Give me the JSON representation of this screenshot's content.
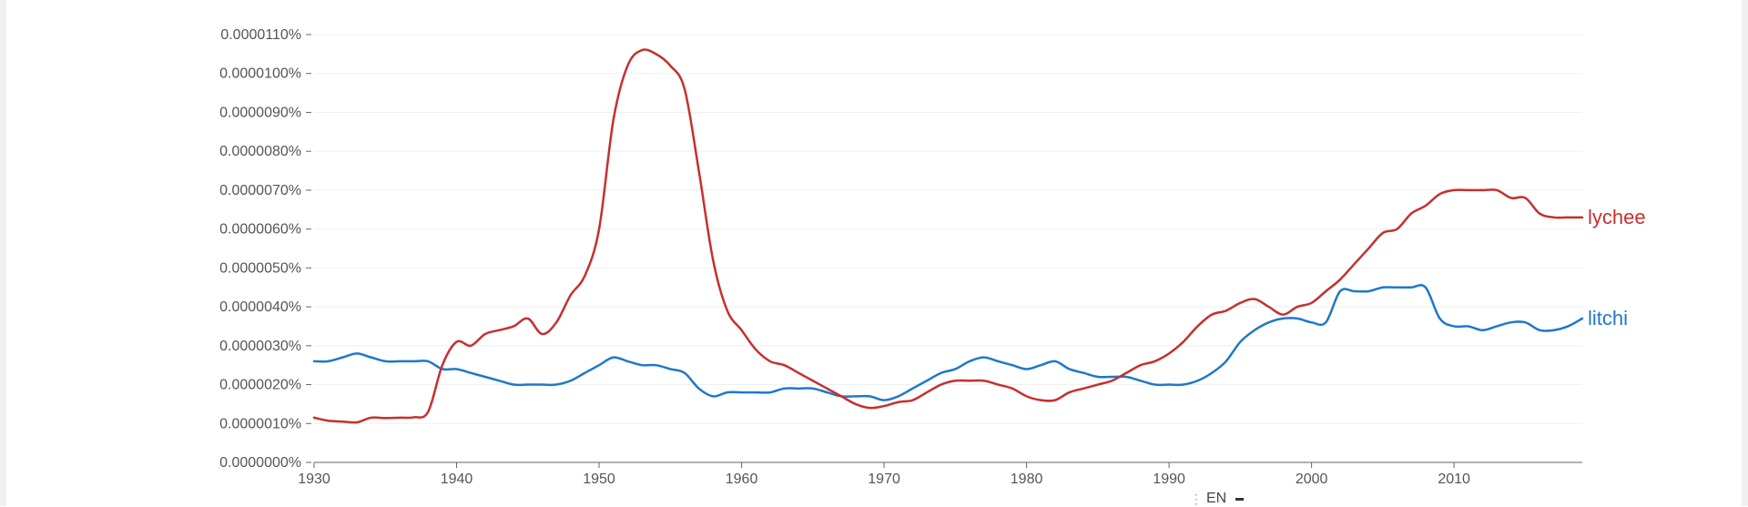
{
  "chart_data": {
    "type": "line",
    "title": "",
    "xlabel": "",
    "ylabel": "",
    "xlim": [
      1930,
      2019
    ],
    "ylim": [
      0,
      1.1e-05
    ],
    "x_ticks": [
      "1930",
      "1940",
      "1950",
      "1960",
      "1970",
      "1980",
      "1990",
      "2000",
      "2010"
    ],
    "y_ticks": [
      "0.0000000%",
      "0.0000010%",
      "0.0000020%",
      "0.0000030%",
      "0.0000040%",
      "0.0000050%",
      "0.0000060%",
      "0.0000070%",
      "0.0000080%",
      "0.0000090%",
      "0.0000100%",
      "0.0000110%"
    ],
    "grid": true,
    "legend": "inline labels at line ends (right)",
    "series": [
      {
        "name": "lychee",
        "color": "#c62f2f",
        "points": [
          [
            1930,
            1.15e-06
          ],
          [
            1931,
            1.07e-06
          ],
          [
            1932,
            1.05e-06
          ],
          [
            1933,
            1.03e-06
          ],
          [
            1934,
            1.15e-06
          ],
          [
            1935,
            1.14e-06
          ],
          [
            1936,
            1.15e-06
          ],
          [
            1937,
            1.16e-06
          ],
          [
            1938,
            1.3e-06
          ],
          [
            1939,
            2.5e-06
          ],
          [
            1940,
            3.1e-06
          ],
          [
            1941,
            3e-06
          ],
          [
            1942,
            3.3e-06
          ],
          [
            1943,
            3.4e-06
          ],
          [
            1944,
            3.5e-06
          ],
          [
            1945,
            3.7e-06
          ],
          [
            1946,
            3.3e-06
          ],
          [
            1947,
            3.6e-06
          ],
          [
            1948,
            4.3e-06
          ],
          [
            1949,
            4.8e-06
          ],
          [
            1950,
            6e-06
          ],
          [
            1951,
            8.8e-06
          ],
          [
            1952,
            1.02e-05
          ],
          [
            1953,
            1.06e-05
          ],
          [
            1954,
            1.05e-05
          ],
          [
            1955,
            1.02e-05
          ],
          [
            1956,
            9.6e-06
          ],
          [
            1957,
            7.5e-06
          ],
          [
            1958,
            5.2e-06
          ],
          [
            1959,
            3.9e-06
          ],
          [
            1960,
            3.4e-06
          ],
          [
            1961,
            2.9e-06
          ],
          [
            1962,
            2.6e-06
          ],
          [
            1963,
            2.5e-06
          ],
          [
            1964,
            2.3e-06
          ],
          [
            1965,
            2.1e-06
          ],
          [
            1966,
            1.9e-06
          ],
          [
            1967,
            1.7e-06
          ],
          [
            1968,
            1.5e-06
          ],
          [
            1969,
            1.4e-06
          ],
          [
            1970,
            1.45e-06
          ],
          [
            1971,
            1.55e-06
          ],
          [
            1972,
            1.6e-06
          ],
          [
            1973,
            1.8e-06
          ],
          [
            1974,
            2e-06
          ],
          [
            1975,
            2.1e-06
          ],
          [
            1976,
            2.1e-06
          ],
          [
            1977,
            2.1e-06
          ],
          [
            1978,
            2e-06
          ],
          [
            1979,
            1.9e-06
          ],
          [
            1980,
            1.7e-06
          ],
          [
            1981,
            1.6e-06
          ],
          [
            1982,
            1.6e-06
          ],
          [
            1983,
            1.8e-06
          ],
          [
            1984,
            1.9e-06
          ],
          [
            1985,
            2e-06
          ],
          [
            1986,
            2.1e-06
          ],
          [
            1987,
            2.3e-06
          ],
          [
            1988,
            2.5e-06
          ],
          [
            1989,
            2.6e-06
          ],
          [
            1990,
            2.8e-06
          ],
          [
            1991,
            3.1e-06
          ],
          [
            1992,
            3.5e-06
          ],
          [
            1993,
            3.8e-06
          ],
          [
            1994,
            3.9e-06
          ],
          [
            1995,
            4.1e-06
          ],
          [
            1996,
            4.2e-06
          ],
          [
            1997,
            4e-06
          ],
          [
            1998,
            3.8e-06
          ],
          [
            1999,
            4e-06
          ],
          [
            2000,
            4.1e-06
          ],
          [
            2001,
            4.4e-06
          ],
          [
            2002,
            4.7e-06
          ],
          [
            2003,
            5.1e-06
          ],
          [
            2004,
            5.5e-06
          ],
          [
            2005,
            5.9e-06
          ],
          [
            2006,
            6e-06
          ],
          [
            2007,
            6.4e-06
          ],
          [
            2008,
            6.6e-06
          ],
          [
            2009,
            6.9e-06
          ],
          [
            2010,
            7e-06
          ],
          [
            2011,
            7e-06
          ],
          [
            2012,
            7e-06
          ],
          [
            2013,
            7e-06
          ],
          [
            2014,
            6.8e-06
          ],
          [
            2015,
            6.8e-06
          ],
          [
            2016,
            6.4e-06
          ],
          [
            2017,
            6.3e-06
          ],
          [
            2018,
            6.3e-06
          ],
          [
            2019,
            6.3e-06
          ]
        ]
      },
      {
        "name": "litchi",
        "color": "#1f78c8",
        "points": [
          [
            1930,
            2.6e-06
          ],
          [
            1931,
            2.6e-06
          ],
          [
            1932,
            2.7e-06
          ],
          [
            1933,
            2.8e-06
          ],
          [
            1934,
            2.7e-06
          ],
          [
            1935,
            2.6e-06
          ],
          [
            1936,
            2.6e-06
          ],
          [
            1937,
            2.6e-06
          ],
          [
            1938,
            2.6e-06
          ],
          [
            1939,
            2.4e-06
          ],
          [
            1940,
            2.4e-06
          ],
          [
            1941,
            2.3e-06
          ],
          [
            1942,
            2.2e-06
          ],
          [
            1943,
            2.1e-06
          ],
          [
            1944,
            2e-06
          ],
          [
            1945,
            2e-06
          ],
          [
            1946,
            2e-06
          ],
          [
            1947,
            2e-06
          ],
          [
            1948,
            2.1e-06
          ],
          [
            1949,
            2.3e-06
          ],
          [
            1950,
            2.5e-06
          ],
          [
            1951,
            2.7e-06
          ],
          [
            1952,
            2.6e-06
          ],
          [
            1953,
            2.5e-06
          ],
          [
            1954,
            2.5e-06
          ],
          [
            1955,
            2.4e-06
          ],
          [
            1956,
            2.3e-06
          ],
          [
            1957,
            1.9e-06
          ],
          [
            1958,
            1.7e-06
          ],
          [
            1959,
            1.8e-06
          ],
          [
            1960,
            1.8e-06
          ],
          [
            1961,
            1.8e-06
          ],
          [
            1962,
            1.8e-06
          ],
          [
            1963,
            1.9e-06
          ],
          [
            1964,
            1.9e-06
          ],
          [
            1965,
            1.9e-06
          ],
          [
            1966,
            1.8e-06
          ],
          [
            1967,
            1.7e-06
          ],
          [
            1968,
            1.7e-06
          ],
          [
            1969,
            1.7e-06
          ],
          [
            1970,
            1.6e-06
          ],
          [
            1971,
            1.7e-06
          ],
          [
            1972,
            1.9e-06
          ],
          [
            1973,
            2.1e-06
          ],
          [
            1974,
            2.3e-06
          ],
          [
            1975,
            2.4e-06
          ],
          [
            1976,
            2.6e-06
          ],
          [
            1977,
            2.7e-06
          ],
          [
            1978,
            2.6e-06
          ],
          [
            1979,
            2.5e-06
          ],
          [
            1980,
            2.4e-06
          ],
          [
            1981,
            2.5e-06
          ],
          [
            1982,
            2.6e-06
          ],
          [
            1983,
            2.4e-06
          ],
          [
            1984,
            2.3e-06
          ],
          [
            1985,
            2.2e-06
          ],
          [
            1986,
            2.2e-06
          ],
          [
            1987,
            2.2e-06
          ],
          [
            1988,
            2.1e-06
          ],
          [
            1989,
            2e-06
          ],
          [
            1990,
            2e-06
          ],
          [
            1991,
            2e-06
          ],
          [
            1992,
            2.1e-06
          ],
          [
            1993,
            2.3e-06
          ],
          [
            1994,
            2.6e-06
          ],
          [
            1995,
            3.1e-06
          ],
          [
            1996,
            3.4e-06
          ],
          [
            1997,
            3.6e-06
          ],
          [
            1998,
            3.7e-06
          ],
          [
            1999,
            3.7e-06
          ],
          [
            2000,
            3.6e-06
          ],
          [
            2001,
            3.6e-06
          ],
          [
            2002,
            4.4e-06
          ],
          [
            2003,
            4.4e-06
          ],
          [
            2004,
            4.4e-06
          ],
          [
            2005,
            4.5e-06
          ],
          [
            2006,
            4.5e-06
          ],
          [
            2007,
            4.5e-06
          ],
          [
            2008,
            4.5e-06
          ],
          [
            2009,
            3.7e-06
          ],
          [
            2010,
            3.5e-06
          ],
          [
            2011,
            3.5e-06
          ],
          [
            2012,
            3.4e-06
          ],
          [
            2013,
            3.5e-06
          ],
          [
            2014,
            3.6e-06
          ],
          [
            2015,
            3.6e-06
          ],
          [
            2016,
            3.4e-06
          ],
          [
            2017,
            3.4e-06
          ],
          [
            2018,
            3.5e-06
          ],
          [
            2019,
            3.7e-06
          ]
        ]
      }
    ]
  },
  "corpus_selector": {
    "label": "EN"
  }
}
